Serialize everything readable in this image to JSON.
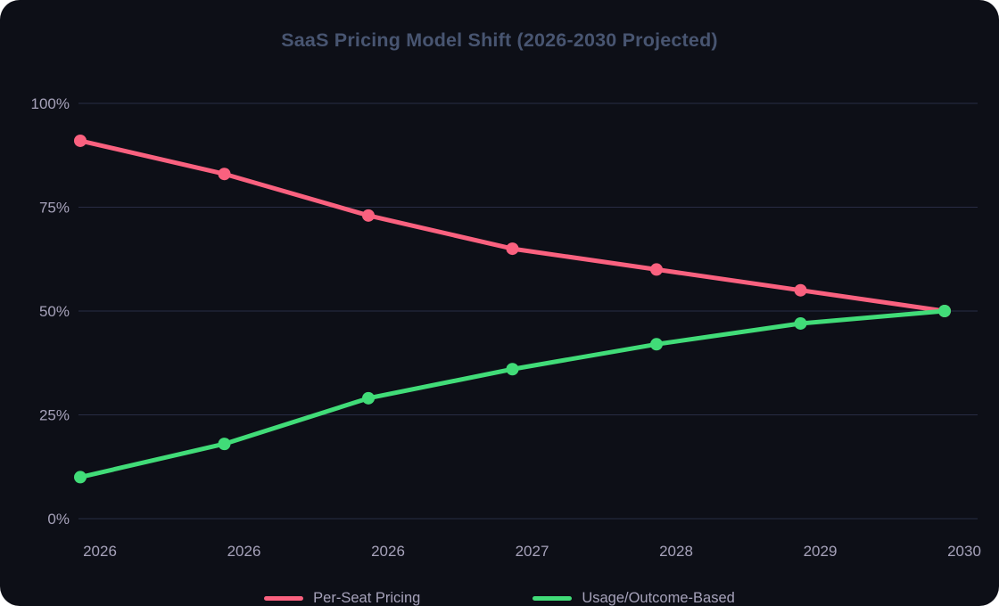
{
  "chart_title": "SaaS Pricing Model Shift (2026-2030 Projected)",
  "chart_data": {
    "type": "line",
    "title": "SaaS Pricing Model Shift (2026-2030 Projected)",
    "categories": [
      "2026",
      "2026",
      "2026",
      "2027",
      "2028",
      "2029",
      "2030"
    ],
    "series": [
      {
        "name": "Per-Seat Pricing",
        "color": "#fa617f",
        "values": [
          91,
          83,
          73,
          65,
          60,
          55,
          50
        ]
      },
      {
        "name": "Usage/Outcome-Based",
        "color": "#41dc78",
        "values": [
          10,
          18,
          29,
          36,
          42,
          47,
          50
        ]
      }
    ],
    "xlabel": "",
    "ylabel": "",
    "y_ticks": [
      {
        "label": "0%",
        "value": 0
      },
      {
        "label": "25%",
        "value": 25
      },
      {
        "label": "50%",
        "value": 50
      },
      {
        "label": "75%",
        "value": 75
      },
      {
        "label": "100%",
        "value": 100
      }
    ],
    "ylim": [
      0,
      100
    ],
    "grid": true,
    "legend_position": "bottom"
  },
  "style": {
    "card_background": "#0d0f17",
    "title_color": "#485571",
    "tick_color": "#a6a2ba",
    "grid_color": "#282c44",
    "per_seat_color": "#fa617f",
    "usage_color": "#41dc78"
  }
}
